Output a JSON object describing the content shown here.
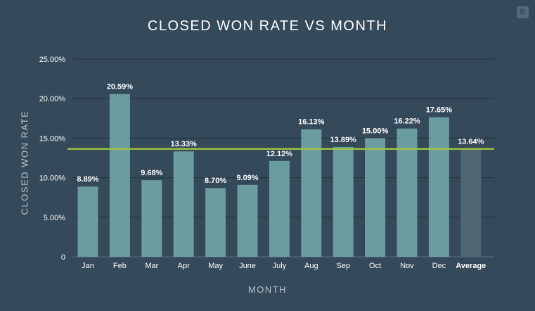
{
  "chart_data": {
    "type": "bar",
    "title": "CLOSED WON RATE VS MONTH",
    "xlabel": "MONTH",
    "ylabel": "CLOSED WON RATE",
    "ylim": [
      0,
      25
    ],
    "yticks": [
      0,
      5,
      10,
      15,
      20,
      25
    ],
    "ytick_labels": [
      "0",
      "5.00%",
      "10.00%",
      "15.00%",
      "20.00%",
      "25.00%"
    ],
    "categories": [
      "Jan",
      "Feb",
      "Mar",
      "Apr",
      "May",
      "June",
      "July",
      "Aug",
      "Sep",
      "Oct",
      "Nov",
      "Dec",
      "Average"
    ],
    "values": [
      8.89,
      20.59,
      9.68,
      13.33,
      8.7,
      9.09,
      12.12,
      16.13,
      13.89,
      15.0,
      16.22,
      17.65,
      13.64
    ],
    "value_labels": [
      "8.89%",
      "20.59%",
      "9.68%",
      "13.33%",
      "8.70%",
      "9.09%",
      "12.12%",
      "16.13%",
      "13.89%",
      "15.00%",
      "16.22%",
      "17.65%",
      "13.64%"
    ],
    "reference_line": {
      "value": 13.64,
      "color": "#9fc33b"
    },
    "bar_color": "#6b9c9f",
    "average_bar_color": "#4e6770",
    "grid": true
  },
  "logo_text": "B"
}
